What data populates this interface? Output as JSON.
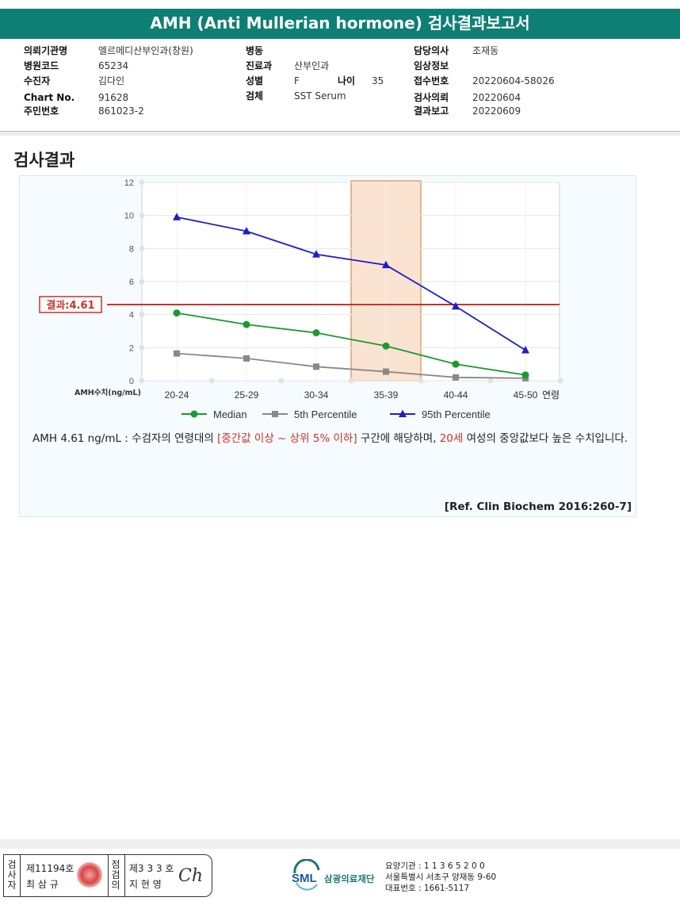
{
  "report": {
    "title": "AMH (Anti Mullerian hormone) 검사결과보고서"
  },
  "info": {
    "col1": [
      {
        "label": "의뢰기관명",
        "value": "엘르메디산부인과(창원)"
      },
      {
        "label": "병원코드",
        "value": "65234"
      },
      {
        "label": "수진자",
        "value": "김다인"
      },
      {
        "label": "Chart No.",
        "value": "91628"
      },
      {
        "label": "주민번호",
        "value": "861023-2"
      }
    ],
    "col2": [
      {
        "label": "병동",
        "value": ""
      },
      {
        "label": "진료과",
        "value": "산부인과"
      },
      {
        "label": "성별",
        "value": "F"
      },
      {
        "label": "검체",
        "value": "SST Serum"
      }
    ],
    "age": {
      "label": "나이",
      "value": "35"
    },
    "col3": [
      {
        "label": "담당의사",
        "value": "조재동"
      },
      {
        "label": "임상정보",
        "value": ""
      },
      {
        "label": "접수번호",
        "value": "20220604-58026"
      },
      {
        "label": "검사의뢰",
        "value": "20220604"
      },
      {
        "label": "결과보고",
        "value": "20220609"
      }
    ]
  },
  "section": {
    "title": "검사결과"
  },
  "chart_data": {
    "type": "line",
    "categories": [
      "20-24",
      "25-29",
      "30-34",
      "35-39",
      "40-44",
      "45-50"
    ],
    "xlabel": "연령",
    "ylabel": "AMH수치(ng/mL)",
    "ylim": [
      0,
      12
    ],
    "yticks": [
      "0",
      "2",
      "4",
      "6",
      "8",
      "10",
      "12"
    ],
    "grid": true,
    "legend_position": "bottom",
    "series": [
      {
        "name": "Median",
        "color": "#1a9a2e",
        "marker": "circle",
        "values": [
          4.1,
          3.4,
          2.9,
          2.1,
          1.0,
          0.35
        ]
      },
      {
        "name": "5th Percentile",
        "color": "#888888",
        "marker": "square",
        "values": [
          1.65,
          1.35,
          0.85,
          0.55,
          0.2,
          0.15
        ]
      },
      {
        "name": "95th Percentile",
        "color": "#1e1ec8",
        "marker": "triangle",
        "values": [
          9.9,
          9.05,
          7.65,
          7.0,
          4.5,
          1.85
        ]
      }
    ],
    "highlight_category": "35-39",
    "highlight_color": "#f9d9c2",
    "result": {
      "value": 4.61,
      "label": "결과:4.61",
      "color": "#d0302b"
    }
  },
  "comment": {
    "part1": "AMH  4.61 ng/mL : 수검자의 연령대의 ",
    "range": "[중간값 이상 ~ 상위 5% 이하]",
    "part2": " 구간에 해당하며, ",
    "age": "20세",
    "part3": " 여성의 중앙값보다 높은 수치입니다."
  },
  "reference": "[Ref. Clin Biochem 2016:260-7]",
  "footer": {
    "inspector": {
      "vertical": [
        "검",
        "사",
        "자"
      ],
      "license": "제11194호",
      "name": "최 삼 규"
    },
    "reviewer": {
      "vertical": [
        "점",
        "검",
        "의"
      ],
      "license": "제3 3 3 호",
      "name": "지 현 영",
      "signature": "Ch"
    },
    "org_logo": "SML",
    "org_name": "삼광의료재단",
    "org_code": "요양기관 : 1 1 3 6 5 2 0 0",
    "org_address": "서울특별시 서초구 양재동 9-60",
    "org_phone": "대표번호 : 1661-5117"
  }
}
